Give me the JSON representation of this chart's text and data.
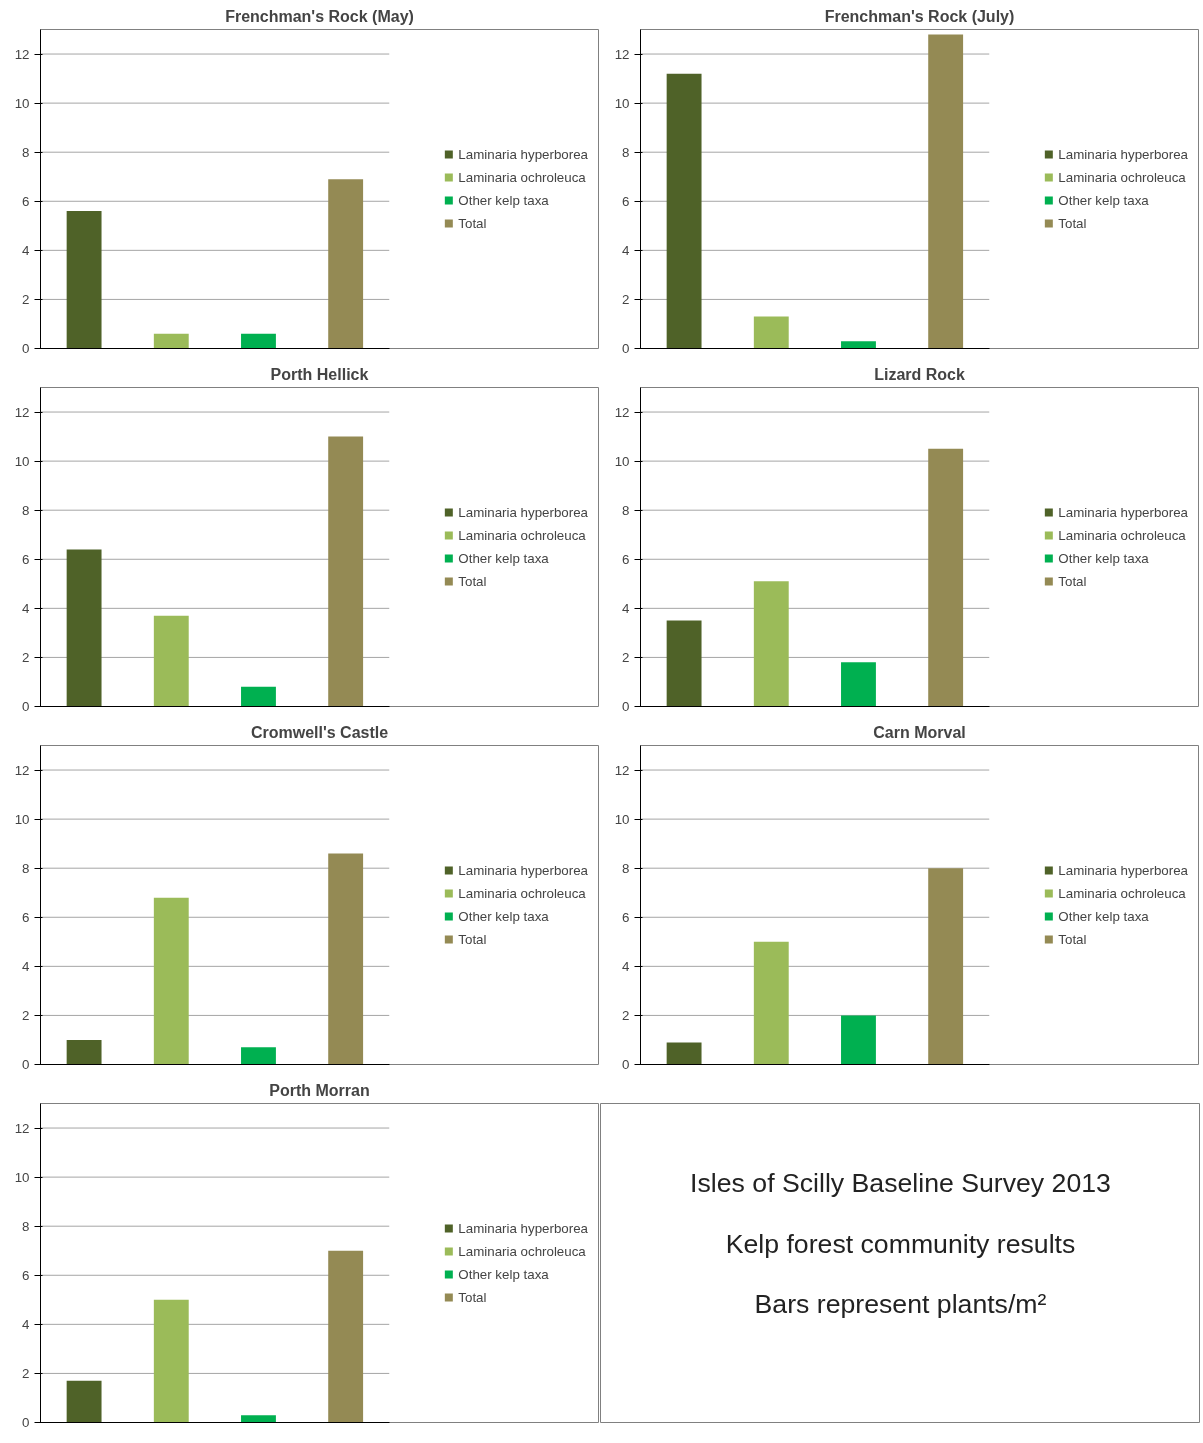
{
  "chart_data": [
    {
      "type": "bar",
      "title": "Frenchman's Rock (May)",
      "categories": [
        null
      ],
      "ylim": [
        0,
        13
      ],
      "yticks": [
        0,
        2,
        4,
        6,
        8,
        10,
        12
      ],
      "grid": "y",
      "legend": "right",
      "tick_labels": "y",
      "series": [
        {
          "name": "Laminaria hyperborea",
          "color": "#4f6228",
          "values": [
            5.6
          ]
        },
        {
          "name": "Laminaria ochroleuca",
          "color": "#9bbb59",
          "values": [
            0.6
          ]
        },
        {
          "name": "Other kelp taxa",
          "color": "#00b050",
          "values": [
            0.6
          ]
        },
        {
          "name": "Total",
          "color": "#948a54",
          "values": [
            6.9
          ]
        }
      ]
    },
    {
      "type": "bar",
      "title": "Frenchman's Rock (July)",
      "categories": [
        null
      ],
      "ylim": [
        0,
        13
      ],
      "yticks": [
        0,
        2,
        4,
        6,
        8,
        10,
        12
      ],
      "grid": "y",
      "legend": "right",
      "tick_labels": "y",
      "series": [
        {
          "name": "Laminaria hyperborea",
          "color": "#4f6228",
          "values": [
            11.2
          ]
        },
        {
          "name": "Laminaria ochroleuca",
          "color": "#9bbb59",
          "values": [
            1.3
          ]
        },
        {
          "name": "Other kelp taxa",
          "color": "#00b050",
          "values": [
            0.3
          ]
        },
        {
          "name": "Total",
          "color": "#948a54",
          "values": [
            12.8
          ]
        }
      ]
    },
    {
      "type": "bar",
      "title": "Porth Hellick",
      "categories": [
        null
      ],
      "ylim": [
        0,
        13
      ],
      "yticks": [
        0,
        2,
        4,
        6,
        8,
        10,
        12
      ],
      "grid": "y",
      "legend": "right",
      "tick_labels": "y",
      "series": [
        {
          "name": "Laminaria hyperborea",
          "color": "#4f6228",
          "values": [
            6.4
          ]
        },
        {
          "name": "Laminaria ochroleuca",
          "color": "#9bbb59",
          "values": [
            3.7
          ]
        },
        {
          "name": "Other kelp taxa",
          "color": "#00b050",
          "values": [
            0.8
          ]
        },
        {
          "name": "Total",
          "color": "#948a54",
          "values": [
            11.0
          ]
        }
      ]
    },
    {
      "type": "bar",
      "title": "Lizard Rock",
      "categories": [
        null
      ],
      "ylim": [
        0,
        13
      ],
      "yticks": [
        0,
        2,
        4,
        6,
        8,
        10,
        12
      ],
      "grid": "y",
      "legend": "right",
      "tick_labels": "y",
      "series": [
        {
          "name": "Laminaria hyperborea",
          "color": "#4f6228",
          "values": [
            3.5
          ]
        },
        {
          "name": "Laminaria ochroleuca",
          "color": "#9bbb59",
          "values": [
            5.1
          ]
        },
        {
          "name": "Other kelp taxa",
          "color": "#00b050",
          "values": [
            1.8
          ]
        },
        {
          "name": "Total",
          "color": "#948a54",
          "values": [
            10.5
          ]
        }
      ]
    },
    {
      "type": "bar",
      "title": "Cromwell's Castle",
      "categories": [
        null
      ],
      "ylim": [
        0,
        13
      ],
      "yticks": [
        0,
        2,
        4,
        6,
        8,
        10,
        12
      ],
      "grid": "y",
      "legend": "right",
      "tick_labels": "y",
      "series": [
        {
          "name": "Laminaria hyperborea",
          "color": "#4f6228",
          "values": [
            1.0
          ]
        },
        {
          "name": "Laminaria ochroleuca",
          "color": "#9bbb59",
          "values": [
            6.8
          ]
        },
        {
          "name": "Other kelp taxa",
          "color": "#00b050",
          "values": [
            0.7
          ]
        },
        {
          "name": "Total",
          "color": "#948a54",
          "values": [
            8.6
          ]
        }
      ]
    },
    {
      "type": "bar",
      "title": "Carn Morval",
      "categories": [
        null
      ],
      "ylim": [
        0,
        13
      ],
      "yticks": [
        0,
        2,
        4,
        6,
        8,
        10,
        12
      ],
      "grid": "y",
      "legend": "right",
      "tick_labels": "y",
      "series": [
        {
          "name": "Laminaria hyperborea",
          "color": "#4f6228",
          "values": [
            0.9
          ]
        },
        {
          "name": "Laminaria ochroleuca",
          "color": "#9bbb59",
          "values": [
            5.0
          ]
        },
        {
          "name": "Other kelp taxa",
          "color": "#00b050",
          "values": [
            2.0
          ]
        },
        {
          "name": "Total",
          "color": "#948a54",
          "values": [
            8.0
          ]
        }
      ]
    },
    {
      "type": "bar",
      "title": "Porth Morran",
      "categories": [
        null
      ],
      "ylim": [
        0,
        13
      ],
      "yticks": [
        0,
        2,
        4,
        6,
        8,
        10,
        12
      ],
      "grid": "y",
      "legend": "right",
      "tick_labels": "y",
      "series": [
        {
          "name": "Laminaria hyperborea",
          "color": "#4f6228",
          "values": [
            1.7
          ]
        },
        {
          "name": "Laminaria ochroleuca",
          "color": "#9bbb59",
          "values": [
            5.0
          ]
        },
        {
          "name": "Other kelp taxa",
          "color": "#00b050",
          "values": [
            0.3
          ]
        },
        {
          "name": "Total",
          "color": "#948a54",
          "values": [
            7.0
          ]
        }
      ]
    },
    {
      "type": "other",
      "annotations": [
        "Isles of Scilly Baseline Survey 2013",
        "Kelp forest community results",
        "Bars represent plants/m²"
      ]
    }
  ]
}
